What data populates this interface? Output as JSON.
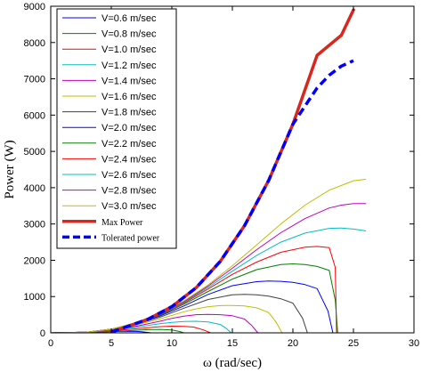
{
  "chart_data": {
    "type": "line",
    "xlabel": "ω (rad/sec)",
    "ylabel": "Power (W)",
    "xlim": [
      0,
      30
    ],
    "ylim": [
      0,
      9000
    ],
    "xticks": [
      0,
      5,
      10,
      15,
      20,
      25,
      30
    ],
    "yticks": [
      0,
      1000,
      2000,
      3000,
      4000,
      5000,
      6000,
      7000,
      8000,
      9000
    ],
    "grid": false,
    "legend_position": "top-left",
    "series": [
      {
        "name": "V=0.6 m/sec",
        "color": "#0000ff",
        "style": "thin",
        "x": [
          0,
          2,
          3,
          4,
          5,
          6,
          7,
          7.5,
          8.0,
          8.3
        ],
        "y": [
          0,
          6,
          12,
          22,
          34,
          42,
          40,
          30,
          12,
          0
        ]
      },
      {
        "name": "V=0.8 m/sec",
        "color": "#008000",
        "style": "thin",
        "x": [
          0,
          2,
          4,
          6,
          7,
          8,
          9,
          10,
          10.6,
          11.0
        ],
        "y": [
          0,
          6,
          20,
          52,
          72,
          88,
          95,
          80,
          40,
          0
        ]
      },
      {
        "name": "V=1.0 m/sec",
        "color": "#ff0000",
        "style": "thin",
        "x": [
          0,
          3,
          5,
          7,
          8,
          9,
          10,
          11,
          11.8,
          12.6,
          13.2
        ],
        "y": [
          0,
          12,
          55,
          110,
          140,
          170,
          185,
          180,
          160,
          80,
          0
        ]
      },
      {
        "name": "V=1.2 m/sec",
        "color": "#00bfbf",
        "style": "thin",
        "x": [
          0,
          3,
          5,
          7,
          9,
          10,
          11,
          12,
          13,
          14,
          14.5,
          14.9
        ],
        "y": [
          0,
          15,
          70,
          150,
          250,
          290,
          315,
          318,
          300,
          230,
          120,
          0
        ]
      },
      {
        "name": "V=1.4 m/sec",
        "color": "#bf00bf",
        "style": "thin",
        "x": [
          0,
          3,
          5,
          7,
          9,
          10,
          11,
          12,
          13,
          14,
          15,
          16,
          16.6,
          17.1
        ],
        "y": [
          0,
          18,
          80,
          180,
          320,
          400,
          460,
          500,
          510,
          500,
          470,
          380,
          200,
          0
        ]
      },
      {
        "name": "V=1.6 m/sec",
        "color": "#bfbf00",
        "style": "thin",
        "x": [
          0,
          3,
          5,
          7,
          9,
          11,
          12,
          13,
          14,
          15,
          16,
          17,
          18,
          18.6,
          19.1
        ],
        "y": [
          0,
          20,
          90,
          210,
          380,
          580,
          660,
          720,
          750,
          755,
          740,
          690,
          560,
          300,
          0
        ]
      },
      {
        "name": "V=1.8 m/sec",
        "color": "#404040",
        "style": "thin",
        "x": [
          0,
          3,
          5,
          7,
          9,
          11,
          13,
          15,
          16,
          17,
          18,
          19,
          20,
          20.8,
          21.2
        ],
        "y": [
          0,
          20,
          95,
          230,
          430,
          680,
          920,
          1050,
          1060,
          1050,
          1010,
          940,
          820,
          400,
          0
        ]
      },
      {
        "name": "V=2.0 m/sec",
        "color": "#0000ff",
        "style": "thin",
        "x": [
          0,
          3,
          5,
          7,
          9,
          11,
          13,
          15,
          17,
          18,
          19,
          20,
          21,
          22,
          22.9,
          23.3
        ],
        "y": [
          0,
          20,
          100,
          250,
          460,
          740,
          1060,
          1300,
          1410,
          1430,
          1420,
          1390,
          1330,
          1220,
          600,
          0
        ]
      },
      {
        "name": "V=2.2 m/sec",
        "color": "#008000",
        "style": "thin",
        "x": [
          0,
          3,
          5,
          7,
          9,
          11,
          13,
          15,
          17,
          19,
          20,
          21,
          22,
          23,
          23.5,
          23.7
        ],
        "y": [
          0,
          20,
          100,
          260,
          480,
          790,
          1140,
          1480,
          1740,
          1880,
          1900,
          1880,
          1830,
          1720,
          900,
          0
        ]
      },
      {
        "name": "V=2.4 m/sec",
        "color": "#ff0000",
        "style": "thin",
        "x": [
          0,
          3,
          5,
          7,
          9,
          11,
          13,
          15,
          17,
          19,
          21,
          22,
          23,
          23.5,
          23.6,
          26
        ],
        "y": [
          0,
          20,
          100,
          260,
          500,
          820,
          1210,
          1610,
          1950,
          2220,
          2360,
          2380,
          2350,
          1800,
          0,
          0
        ]
      },
      {
        "name": "V=2.6 m/sec",
        "color": "#00bfbf",
        "style": "thin",
        "x": [
          0,
          3,
          5,
          7,
          9,
          11,
          13,
          15,
          17,
          19,
          21,
          23,
          24,
          25,
          26
        ],
        "y": [
          0,
          20,
          100,
          270,
          510,
          840,
          1250,
          1700,
          2130,
          2500,
          2750,
          2880,
          2890,
          2860,
          2810
        ]
      },
      {
        "name": "V=2.8 m/sec",
        "color": "#bf00bf",
        "style": "thin",
        "x": [
          0,
          3,
          5,
          7,
          9,
          11,
          13,
          15,
          17,
          19,
          21,
          23,
          24,
          25,
          26
        ],
        "y": [
          0,
          20,
          100,
          270,
          520,
          860,
          1290,
          1780,
          2290,
          2760,
          3150,
          3440,
          3520,
          3560,
          3560
        ]
      },
      {
        "name": "V=3.0 m/sec",
        "color": "#bfbf00",
        "style": "thin",
        "x": [
          0,
          3,
          5,
          7,
          9,
          11,
          13,
          15,
          17,
          19,
          21,
          23,
          25,
          26
        ],
        "y": [
          0,
          20,
          100,
          280,
          530,
          880,
          1320,
          1850,
          2420,
          3000,
          3520,
          3930,
          4190,
          4230
        ]
      },
      {
        "name": "Max Power",
        "color": "#d9271e",
        "style": "thick",
        "x": [
          5,
          8,
          10,
          12,
          14,
          16,
          18,
          20,
          22,
          24,
          25
        ],
        "y": [
          20,
          370,
          720,
          1240,
          1970,
          2950,
          4200,
          5750,
          7650,
          8200,
          8900
        ]
      },
      {
        "name": "Tolerated power",
        "color": "#0000ff",
        "style": "dashed",
        "x": [
          5,
          8,
          10,
          12,
          14,
          16,
          18,
          20,
          22,
          23,
          24,
          25
        ],
        "y": [
          20,
          370,
          720,
          1240,
          1970,
          2950,
          4200,
          5750,
          6750,
          7100,
          7350,
          7500
        ]
      }
    ]
  }
}
